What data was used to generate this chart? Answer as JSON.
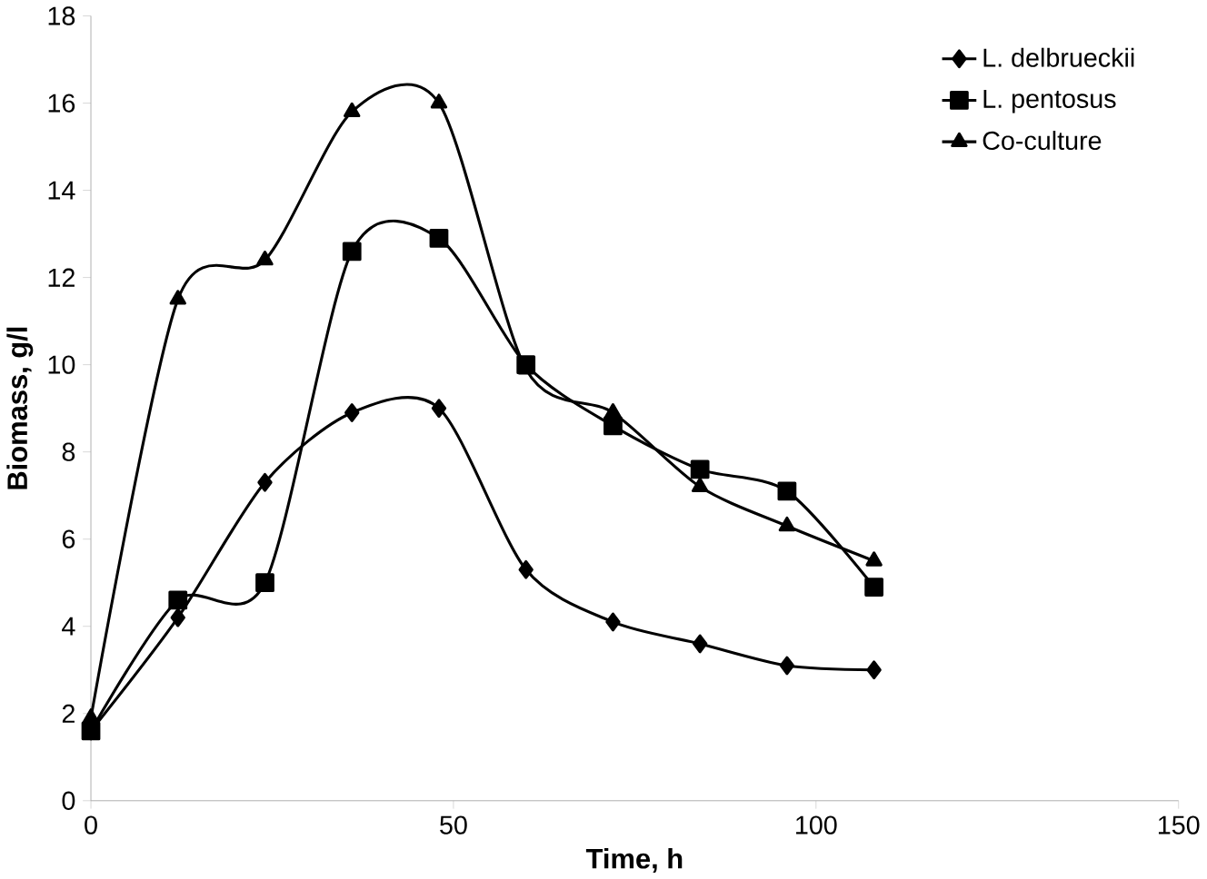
{
  "chart_data": {
    "type": "line",
    "xlabel": "Time, h",
    "ylabel": "Biomass, g/l",
    "x": [
      0,
      12,
      24,
      36,
      48,
      60,
      72,
      84,
      96,
      108
    ],
    "series": [
      {
        "name": "L. delbrueckii",
        "color": "#000000",
        "marker": "diamond",
        "values": [
          1.6,
          4.2,
          7.3,
          8.9,
          9.0,
          5.3,
          4.1,
          3.6,
          3.1,
          3.0
        ]
      },
      {
        "name": "L. pentosus",
        "color": "#000000",
        "marker": "square",
        "values": [
          1.6,
          4.6,
          5.0,
          12.6,
          12.9,
          10.0,
          8.6,
          7.6,
          7.1,
          4.9
        ]
      },
      {
        "name": "Co-culture",
        "color": "#000000",
        "marker": "triangle",
        "values": [
          1.9,
          11.5,
          12.4,
          15.8,
          16.0,
          9.9,
          8.9,
          7.2,
          6.3,
          5.5
        ]
      }
    ],
    "xlim": [
      0,
      150
    ],
    "xticks": [
      0,
      50,
      100,
      150
    ],
    "ylim": [
      0,
      18
    ],
    "yticks": [
      0,
      2,
      4,
      6,
      8,
      10,
      12,
      14,
      16,
      18
    ],
    "grid": false,
    "legend": "top right",
    "line_style": "solid"
  }
}
